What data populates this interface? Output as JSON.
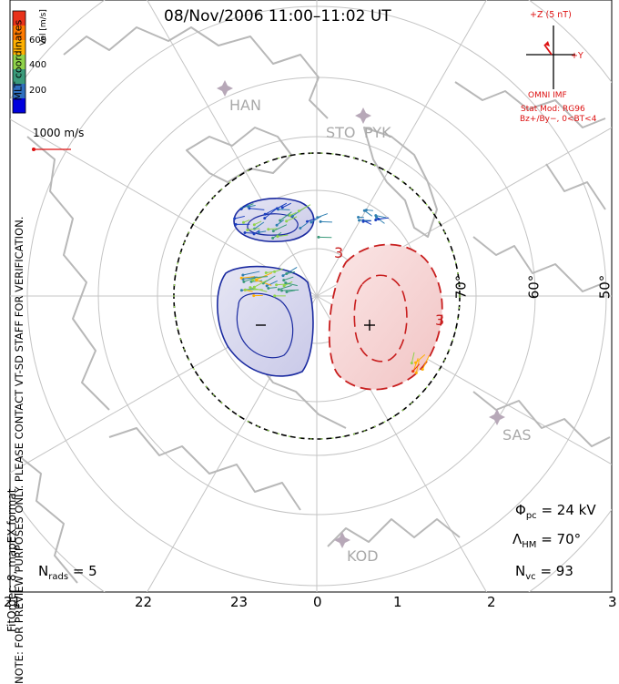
{
  "title": "08/Nov/2006  11:00–11:02  UT",
  "side_note": {
    "line1": "NOTE: FOR PREVIEW PURPOSES ONLY. PLEASE CONTACT VT-SD STAFF FOR VERIFICATION.",
    "line2": "FitOrder: 8, mapEX format"
  },
  "coord_label": "MLT coordinates",
  "colorbar": {
    "label": "Vel [m/s]",
    "ticks": [
      "600",
      "400",
      "200"
    ],
    "colors": [
      "#0000dd",
      "#2f6fbf",
      "#3a9a7a",
      "#8fd34a",
      "#ffb000",
      "#ff7a00",
      "#e8321a"
    ]
  },
  "vector_scale": "1000 m/s",
  "imf": {
    "z_label": "+Z (5 nT)",
    "y_label": "+Y",
    "source": "OMNI IMF",
    "model": "Stat Mod: RG96",
    "condition": "Bz+/By−, 0<BT<4"
  },
  "stations": [
    "HAN",
    "STO",
    "PYK",
    "SAS",
    "KOD"
  ],
  "lat_labels": [
    "70°",
    "60°",
    "50°"
  ],
  "mlt_labels": [
    "21",
    "22",
    "23",
    "0",
    "1",
    "2",
    "3"
  ],
  "stats": {
    "phi_pc_sym": "Φ",
    "phi_pc_sub": "pc",
    "phi_pc_value": "= 24 kV",
    "lambda_sym": "Λ",
    "lambda_sub": "HM",
    "lambda_value": "= 70°",
    "nvc_sym": "N",
    "nvc_sub": "vc",
    "nvc_value": "= 93",
    "nrads_sym": "N",
    "nrads_sub": "rads",
    "nrads_value": "= 5"
  },
  "contours": {
    "negative_symbol": "−",
    "positive_symbol": "+",
    "contour_label": "3"
  },
  "colors": {
    "neg_fill": "#dcdcf0",
    "neg_line": "#1a2aa0",
    "pos_fill": "#f6d6d6",
    "pos_line": "#c81e1e",
    "grid": "#bbbbbb",
    "coast": "#b8b8b8"
  }
}
